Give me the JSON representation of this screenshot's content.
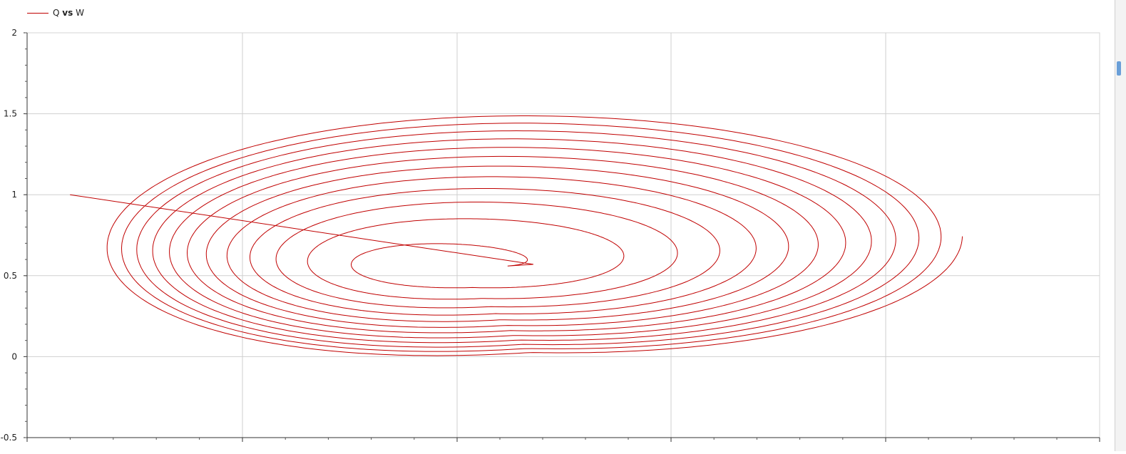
{
  "legend": {
    "series_color": "#c00000",
    "label_left": "Q",
    "label_vs": "vs",
    "label_right": "W"
  },
  "chart_data": {
    "type": "line",
    "title": "",
    "xlabel": "",
    "ylabel": "",
    "ylim": [
      -0.5,
      2
    ],
    "yticks": [
      "-0.5",
      "0",
      "0.5",
      "1",
      "1.5",
      "2"
    ],
    "grid": true,
    "legend_position": "top-left",
    "series": [
      {
        "name": "Q vs W",
        "color": "#c00000",
        "style": "spiral phase trajectory",
        "points": [
          [
            -0.9,
            1.0
          ],
          [
            -0.4,
            0.78
          ],
          [
            0.1,
            0.62
          ],
          [
            0.35,
            0.56
          ],
          [
            0.18,
            0.57
          ],
          [
            0,
            0.6
          ]
        ],
        "spiral": {
          "center": [
            0,
            0.56
          ],
          "loops": 12,
          "outer_limit": {
            "x_min": -0.83,
            "x_max": 1.18,
            "y_min": 0.02,
            "y_max": 1.52
          }
        }
      }
    ]
  }
}
